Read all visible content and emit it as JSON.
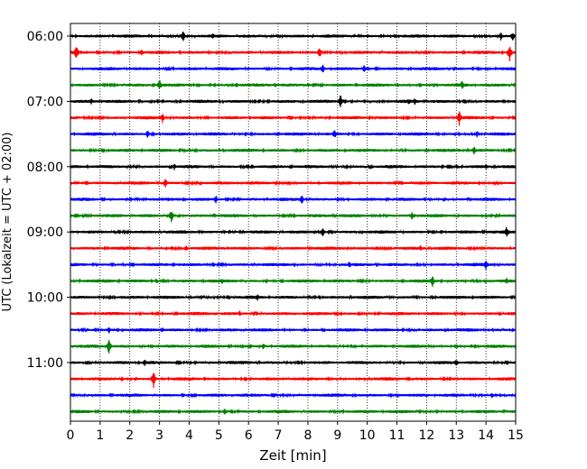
{
  "chart_data": {
    "type": "line",
    "xlabel": "Zeit  [min]",
    "ylabel": "UTC (Lokalzeit = UTC + 02:00)",
    "xlim": [
      0,
      15
    ],
    "x_ticks": [
      0,
      1,
      2,
      3,
      4,
      5,
      6,
      7,
      8,
      9,
      10,
      11,
      12,
      13,
      14,
      15
    ],
    "x_tick_labels": [
      "0",
      "1",
      "2",
      "3",
      "4",
      "5",
      "6",
      "7",
      "8",
      "9",
      "10",
      "11",
      "12",
      "13",
      "14",
      "15"
    ],
    "y_tick_labels": [
      "06:00",
      "07:00",
      "08:00",
      "09:00",
      "10:00",
      "11:00"
    ],
    "y_tick_trace_index": [
      0,
      4,
      8,
      12,
      16,
      20
    ],
    "vertical_grid": "dotted",
    "color_cycle": [
      "#000000",
      "#ff0000",
      "#0000ff",
      "#008000"
    ],
    "traces": [
      {
        "start": "06:00",
        "color": "#000000",
        "events": [
          [
            3.8,
            7
          ],
          [
            4.8,
            4
          ],
          [
            14.5,
            5
          ],
          [
            14.9,
            6
          ]
        ]
      },
      {
        "start": "06:15",
        "color": "#ff0000",
        "events": [
          [
            0.2,
            9
          ],
          [
            2.4,
            4
          ],
          [
            8.4,
            7
          ],
          [
            14.8,
            10
          ]
        ]
      },
      {
        "start": "06:30",
        "color": "#0000ff",
        "events": [
          [
            8.5,
            6
          ],
          [
            9.9,
            5
          ]
        ]
      },
      {
        "start": "06:45",
        "color": "#008000",
        "events": [
          [
            3.0,
            7
          ],
          [
            5.6,
            3
          ],
          [
            13.2,
            6
          ]
        ]
      },
      {
        "start": "07:00",
        "color": "#000000",
        "events": [
          [
            0.7,
            4
          ],
          [
            9.1,
            8
          ],
          [
            11.4,
            4
          ],
          [
            11.6,
            4
          ]
        ]
      },
      {
        "start": "07:15",
        "color": "#ff0000",
        "events": [
          [
            3.1,
            6
          ],
          [
            13.1,
            9
          ]
        ]
      },
      {
        "start": "07:30",
        "color": "#0000ff",
        "events": [
          [
            2.6,
            5
          ],
          [
            8.9,
            6
          ],
          [
            13.7,
            4
          ]
        ]
      },
      {
        "start": "07:45",
        "color": "#008000",
        "events": [
          [
            13.6,
            5
          ]
        ]
      },
      {
        "start": "08:00",
        "color": "#000000",
        "events": [
          [
            3.5,
            4
          ],
          [
            14.0,
            4
          ]
        ]
      },
      {
        "start": "08:15",
        "color": "#ff0000",
        "events": [
          [
            3.2,
            6
          ]
        ]
      },
      {
        "start": "08:30",
        "color": "#0000ff",
        "events": [
          [
            4.9,
            5
          ],
          [
            7.8,
            6
          ]
        ]
      },
      {
        "start": "08:45",
        "color": "#008000",
        "events": [
          [
            3.4,
            8
          ],
          [
            11.5,
            5
          ]
        ]
      },
      {
        "start": "09:00",
        "color": "#000000",
        "events": [
          [
            8.5,
            6
          ],
          [
            14.7,
            7
          ]
        ]
      },
      {
        "start": "09:15",
        "color": "#ff0000",
        "events": [
          [
            3.9,
            4
          ],
          [
            11.8,
            4
          ]
        ]
      },
      {
        "start": "09:30",
        "color": "#0000ff",
        "events": [
          [
            9.4,
            4
          ],
          [
            14.0,
            6
          ]
        ]
      },
      {
        "start": "09:45",
        "color": "#008000",
        "events": [
          [
            5.1,
            4
          ],
          [
            12.2,
            7
          ],
          [
            14.7,
            4
          ]
        ]
      },
      {
        "start": "10:00",
        "color": "#000000",
        "events": [
          [
            6.3,
            4
          ]
        ]
      },
      {
        "start": "10:15",
        "color": "#ff0000",
        "events": [
          [
            5.7,
            4
          ]
        ]
      },
      {
        "start": "10:30",
        "color": "#0000ff",
        "events": [
          [
            1.3,
            4
          ]
        ]
      },
      {
        "start": "10:45",
        "color": "#008000",
        "events": [
          [
            1.3,
            10
          ],
          [
            6.5,
            4
          ]
        ]
      },
      {
        "start": "11:00",
        "color": "#000000",
        "events": [
          [
            2.5,
            5
          ],
          [
            13.0,
            5
          ]
        ]
      },
      {
        "start": "11:15",
        "color": "#ff0000",
        "events": [
          [
            2.8,
            10
          ],
          [
            5.9,
            4
          ]
        ]
      },
      {
        "start": "11:30",
        "color": "#0000ff",
        "events": [
          [
            14.2,
            4
          ]
        ]
      },
      {
        "start": "11:45",
        "color": "#008000",
        "events": [
          [
            5.2,
            5
          ]
        ]
      }
    ]
  }
}
